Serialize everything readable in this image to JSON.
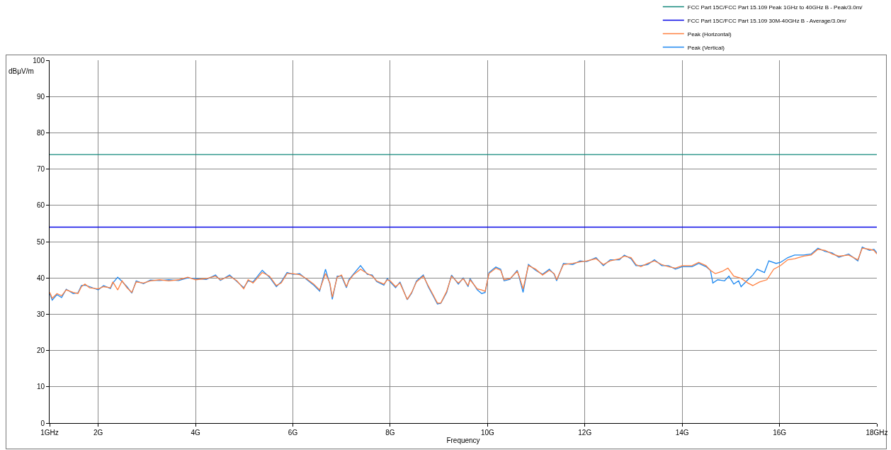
{
  "chart_data": {
    "type": "line",
    "xlabel": "Frequency",
    "ylabel": "dBμV/m",
    "xlim": [
      1,
      18
    ],
    "xticks": [
      {
        "value": 1,
        "label": "1GHz"
      },
      {
        "value": 2,
        "label": "2G"
      },
      {
        "value": 4,
        "label": "4G"
      },
      {
        "value": 6,
        "label": "6G"
      },
      {
        "value": 8,
        "label": "8G"
      },
      {
        "value": 10,
        "label": "10G"
      },
      {
        "value": 12,
        "label": "12G"
      },
      {
        "value": 14,
        "label": "14G"
      },
      {
        "value": 16,
        "label": "16G"
      },
      {
        "value": 18,
        "label": "18GHz"
      }
    ],
    "ylim": [
      0,
      100
    ],
    "yticks": [
      0,
      10,
      20,
      30,
      40,
      50,
      60,
      70,
      80,
      90,
      100
    ],
    "grid": true,
    "legend": "top right",
    "series": [
      {
        "name": "FCC Part 15C/FCC Part 15.109 Peak 1GHz to 40GHz B - Peak/3.0m/",
        "color": "#14897c",
        "x": [
          1,
          18
        ],
        "values": [
          74,
          74
        ]
      },
      {
        "name": "FCC Part 15C/FCC Part 15.109 30M-40GHz B - Average/3.0m/",
        "color": "#0a0ae6",
        "x": [
          1,
          18
        ],
        "values": [
          54,
          54
        ]
      },
      {
        "name": "Peak (Horizontal)",
        "color": "#ff8040",
        "x": [
          1.007,
          1.054,
          1.151,
          1.247,
          1.342,
          1.486,
          1.583,
          1.655,
          1.727,
          1.823,
          2.0,
          2.11,
          2.25,
          2.3,
          2.4,
          2.49,
          2.59,
          2.69,
          2.78,
          2.93,
          3.07,
          3.26,
          3.45,
          3.65,
          3.84,
          4.0,
          4.22,
          4.41,
          4.51,
          4.7,
          4.85,
          4.99,
          5.08,
          5.18,
          5.37,
          5.52,
          5.66,
          5.76,
          5.88,
          6.0,
          6.14,
          6.28,
          6.43,
          6.55,
          6.67,
          6.76,
          6.81,
          6.91,
          7.0,
          7.1,
          7.15,
          7.24,
          7.39,
          7.53,
          7.63,
          7.72,
          7.87,
          7.94,
          8.0,
          8.11,
          8.2,
          8.35,
          8.44,
          8.54,
          8.68,
          8.78,
          8.88,
          8.97,
          9.04,
          9.16,
          9.26,
          9.4,
          9.5,
          9.6,
          9.64,
          9.79,
          9.88,
          9.95,
          10.03,
          10.17,
          10.27,
          10.34,
          10.46,
          10.61,
          10.65,
          10.73,
          10.84,
          10.99,
          11.13,
          11.27,
          11.37,
          11.42,
          11.56,
          11.75,
          11.9,
          12.04,
          12.23,
          12.38,
          12.52,
          12.71,
          12.81,
          12.95,
          13.05,
          13.15,
          13.29,
          13.43,
          13.58,
          13.72,
          13.86,
          14.0,
          14.2,
          14.34,
          14.49,
          14.58,
          14.68,
          14.82,
          14.94,
          15.06,
          15.21,
          15.35,
          15.45,
          15.59,
          15.74,
          15.88,
          16.02,
          16.17,
          16.31,
          16.5,
          16.65,
          16.79,
          16.94,
          17.08,
          17.22,
          17.42,
          17.61,
          17.7,
          17.85,
          17.94,
          18.0
        ],
        "values": [
          36.0,
          34.4,
          35.7,
          35.1,
          36.7,
          36.0,
          35.7,
          37.6,
          38.3,
          37.3,
          37.0,
          37.6,
          37.3,
          38.9,
          36.7,
          39.2,
          37.3,
          36.0,
          38.9,
          38.6,
          39.2,
          39.5,
          39.2,
          39.5,
          40.2,
          39.5,
          39.8,
          40.5,
          39.5,
          40.5,
          39.2,
          37.0,
          39.5,
          38.6,
          41.5,
          40.5,
          37.9,
          38.6,
          41.2,
          41.2,
          40.9,
          39.8,
          38.3,
          36.7,
          41.2,
          38.6,
          34.7,
          40.2,
          40.8,
          37.6,
          39.2,
          40.8,
          42.4,
          41.2,
          40.5,
          39.2,
          38.3,
          39.5,
          39.2,
          37.6,
          38.6,
          34.1,
          36.0,
          38.9,
          40.5,
          37.9,
          35.4,
          33.1,
          33.1,
          36.3,
          40.5,
          38.6,
          39.8,
          37.9,
          39.5,
          37.0,
          36.7,
          36.3,
          41.2,
          42.7,
          42.1,
          39.5,
          39.8,
          41.8,
          40.5,
          37.0,
          43.4,
          42.4,
          40.8,
          42.1,
          41.2,
          39.5,
          43.7,
          44.0,
          44.4,
          44.7,
          45.3,
          43.7,
          44.7,
          45.3,
          46.0,
          45.6,
          43.7,
          43.1,
          44.0,
          44.7,
          43.7,
          43.1,
          42.7,
          43.4,
          43.4,
          44.3,
          43.4,
          42.1,
          41.2,
          41.8,
          42.7,
          40.5,
          39.9,
          38.6,
          37.9,
          38.9,
          39.5,
          42.4,
          43.4,
          45.0,
          45.3,
          46.0,
          46.3,
          47.9,
          47.6,
          46.6,
          46.0,
          46.3,
          45.0,
          48.2,
          47.9,
          47.6,
          46.6
        ]
      },
      {
        "name": "Peak (Vertical)",
        "color": "#1e88f0",
        "x": [
          1.007,
          1.054,
          1.151,
          1.247,
          1.342,
          1.486,
          1.583,
          1.655,
          1.727,
          1.823,
          2.0,
          2.11,
          2.25,
          2.3,
          2.4,
          2.49,
          2.59,
          2.69,
          2.78,
          2.93,
          3.07,
          3.26,
          3.45,
          3.65,
          3.84,
          4.0,
          4.22,
          4.41,
          4.51,
          4.7,
          4.85,
          4.99,
          5.08,
          5.18,
          5.37,
          5.52,
          5.66,
          5.76,
          5.88,
          6.0,
          6.14,
          6.28,
          6.43,
          6.55,
          6.67,
          6.76,
          6.81,
          6.91,
          7.0,
          7.1,
          7.15,
          7.24,
          7.39,
          7.53,
          7.63,
          7.72,
          7.87,
          7.94,
          8.0,
          8.11,
          8.2,
          8.35,
          8.44,
          8.54,
          8.68,
          8.78,
          8.88,
          8.97,
          9.04,
          9.16,
          9.26,
          9.4,
          9.5,
          9.6,
          9.64,
          9.79,
          9.88,
          9.95,
          10.03,
          10.17,
          10.27,
          10.34,
          10.46,
          10.61,
          10.65,
          10.73,
          10.84,
          10.99,
          11.13,
          11.27,
          11.37,
          11.42,
          11.56,
          11.75,
          11.9,
          12.04,
          12.23,
          12.38,
          12.52,
          12.71,
          12.81,
          12.95,
          13.05,
          13.15,
          13.29,
          13.43,
          13.58,
          13.72,
          13.86,
          14.0,
          14.2,
          14.34,
          14.49,
          14.58,
          14.63,
          14.73,
          14.87,
          14.96,
          15.06,
          15.16,
          15.21,
          15.35,
          15.45,
          15.54,
          15.69,
          15.78,
          15.93,
          16.02,
          16.17,
          16.31,
          16.5,
          16.65,
          16.79,
          16.94,
          17.08,
          17.22,
          17.42,
          17.61,
          17.7,
          17.85,
          17.94,
          18.0
        ],
        "values": [
          35.6,
          33.9,
          35.4,
          34.6,
          36.9,
          35.7,
          35.9,
          37.9,
          38.0,
          37.6,
          36.7,
          37.9,
          37.1,
          38.6,
          40.2,
          39.0,
          37.6,
          35.8,
          39.2,
          38.4,
          39.4,
          39.3,
          39.5,
          39.3,
          40.0,
          39.8,
          39.6,
          40.8,
          39.3,
          40.8,
          39.0,
          37.3,
          39.2,
          38.9,
          42.1,
          40.2,
          37.6,
          38.9,
          41.5,
          41.0,
          41.2,
          39.6,
          38.0,
          36.4,
          42.4,
          38.3,
          34.1,
          40.5,
          40.5,
          37.3,
          39.5,
          41.0,
          43.4,
          41.0,
          40.8,
          39.0,
          38.0,
          39.8,
          38.9,
          37.3,
          38.9,
          34.0,
          35.8,
          39.2,
          40.8,
          37.6,
          35.1,
          32.8,
          33.0,
          36.0,
          40.8,
          38.3,
          40.0,
          37.6,
          39.8,
          36.7,
          35.7,
          36.0,
          41.5,
          43.0,
          42.4,
          39.2,
          39.6,
          42.1,
          40.2,
          36.0,
          43.7,
          42.1,
          41.0,
          42.4,
          41.0,
          39.2,
          44.0,
          43.7,
          44.7,
          44.5,
          45.6,
          43.4,
          45.0,
          45.0,
          46.3,
          45.3,
          43.4,
          43.4,
          43.7,
          45.0,
          43.4,
          43.4,
          42.4,
          43.1,
          43.1,
          44.0,
          43.1,
          42.1,
          38.6,
          39.5,
          39.2,
          40.5,
          38.3,
          39.2,
          37.6,
          39.5,
          40.8,
          42.4,
          41.5,
          44.7,
          44.0,
          44.3,
          45.6,
          46.3,
          46.3,
          46.6,
          48.2,
          47.3,
          46.9,
          45.7,
          46.6,
          44.7,
          48.5,
          47.6,
          47.9,
          46.9
        ]
      }
    ]
  }
}
